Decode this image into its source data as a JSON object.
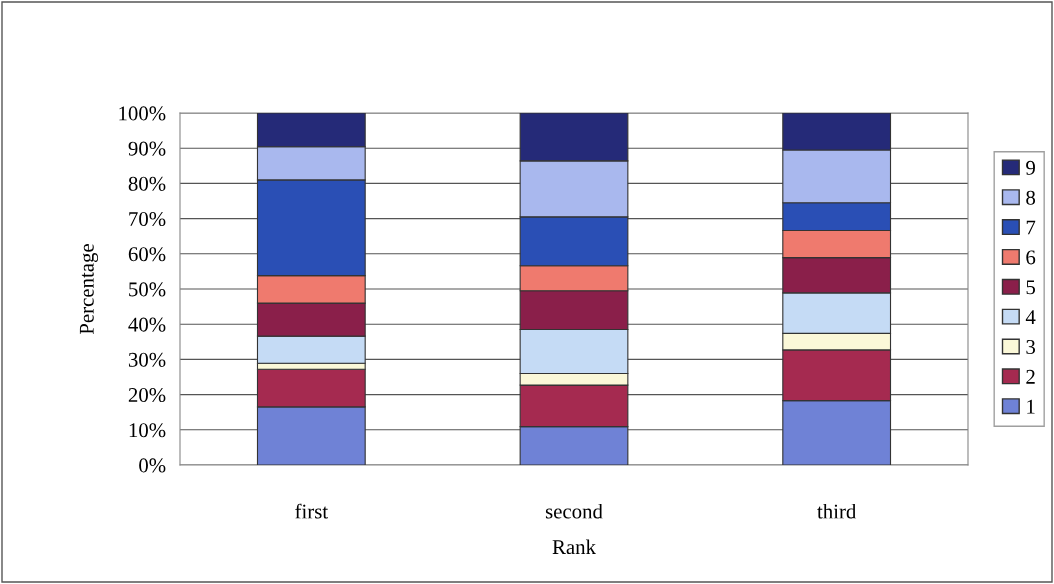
{
  "chart_data": {
    "type": "bar",
    "stacked": true,
    "xlabel": "Rank",
    "ylabel": "Percentage",
    "categories": [
      "first",
      "second",
      "third"
    ],
    "series": [
      {
        "name": "1",
        "color": "#6f82d6",
        "values": [
          16.5,
          10.9,
          18.3
        ]
      },
      {
        "name": "2",
        "color": "#a52a50",
        "values": [
          10.7,
          11.8,
          14.4
        ]
      },
      {
        "name": "3",
        "color": "#fbf8d8",
        "values": [
          1.7,
          3.3,
          4.7
        ]
      },
      {
        "name": "4",
        "color": "#c5dbf5",
        "values": [
          7.7,
          12.5,
          11.5
        ]
      },
      {
        "name": "5",
        "color": "#8a1f4a",
        "values": [
          9.4,
          11.0,
          10.0
        ]
      },
      {
        "name": "6",
        "color": "#ef7a6e",
        "values": [
          7.8,
          7.1,
          7.7
        ]
      },
      {
        "name": "7",
        "color": "#2a4fb5",
        "values": [
          27.2,
          13.9,
          7.9
        ]
      },
      {
        "name": "8",
        "color": "#a9b8ee",
        "values": [
          9.4,
          15.9,
          15.0
        ]
      },
      {
        "name": "9",
        "color": "#252a78",
        "values": [
          9.6,
          13.6,
          10.5
        ]
      }
    ],
    "ylim": [
      0,
      100
    ],
    "yticks": [
      {
        "value": 0,
        "label": "0%"
      },
      {
        "value": 10,
        "label": "10%"
      },
      {
        "value": 20,
        "label": "20%"
      },
      {
        "value": 30,
        "label": "30%"
      },
      {
        "value": 40,
        "label": "40%"
      },
      {
        "value": 50,
        "label": "50%"
      },
      {
        "value": 60,
        "label": "60%"
      },
      {
        "value": 70,
        "label": "70%"
      },
      {
        "value": 80,
        "label": "80%"
      },
      {
        "value": 90,
        "label": "90%"
      },
      {
        "value": 100,
        "label": "100%"
      }
    ],
    "grid": "y",
    "legend": "right"
  }
}
